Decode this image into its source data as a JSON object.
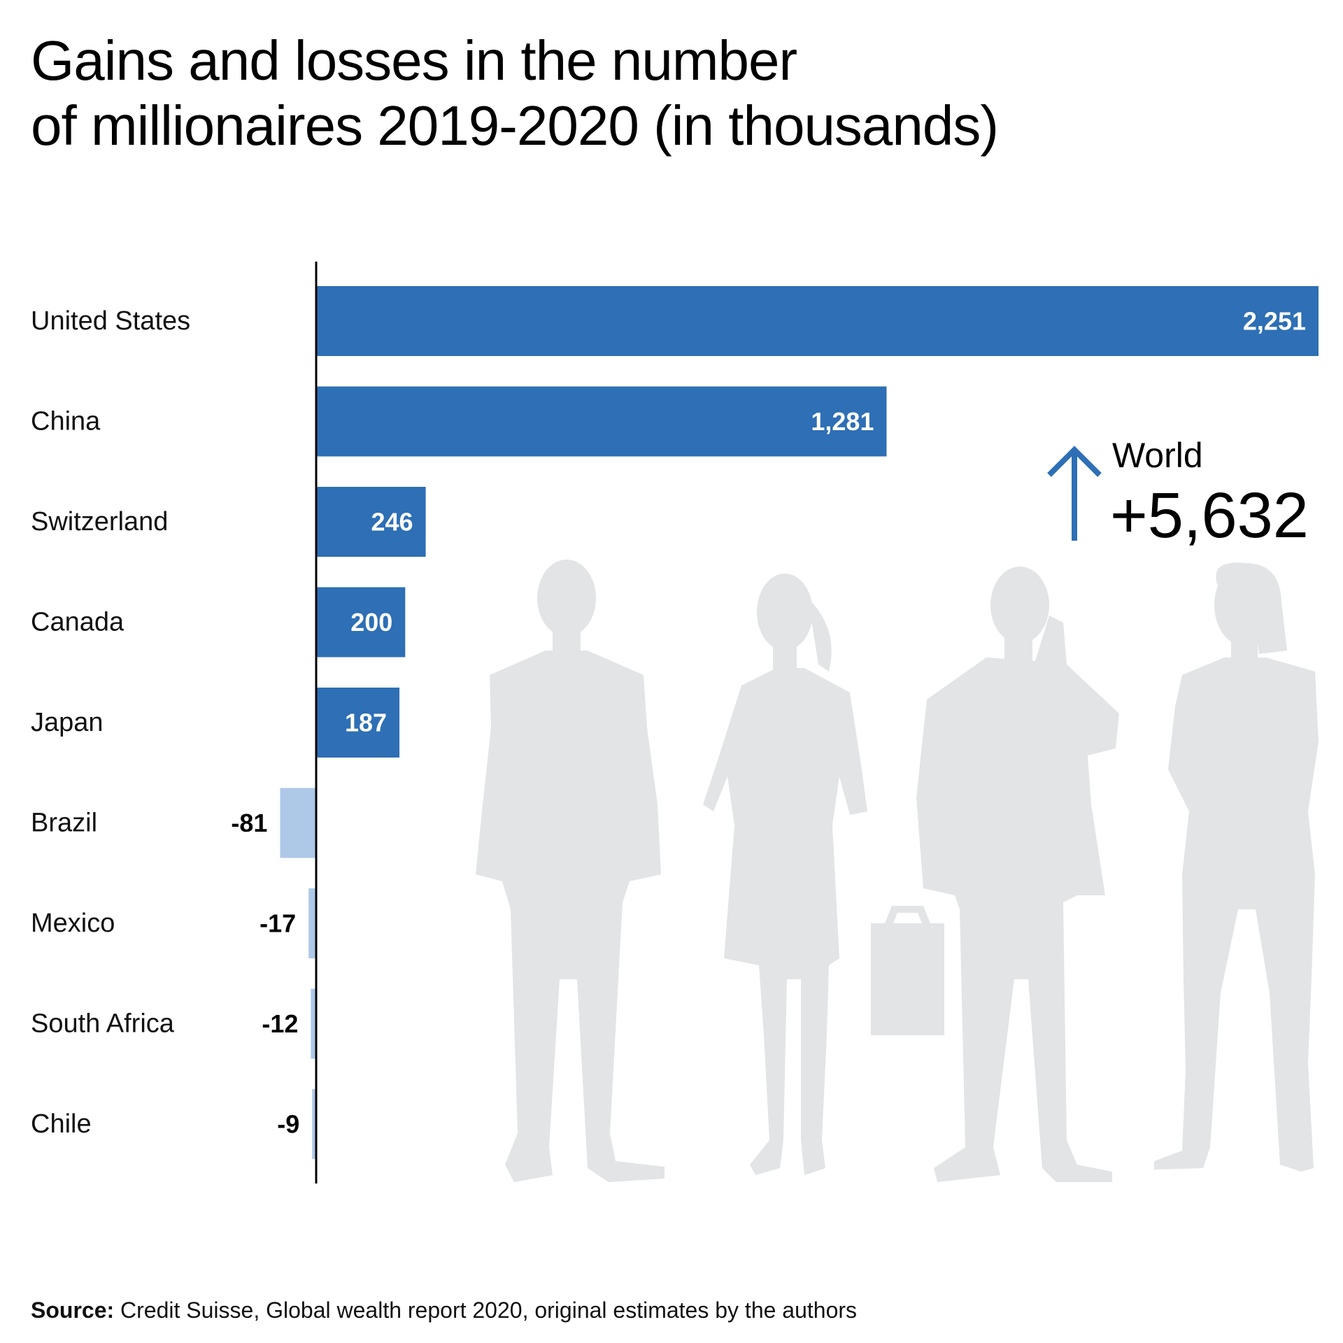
{
  "colors": {
    "positive": "#2e6fb5",
    "negative": "#aec8e8",
    "silhouette": "#e3e4e6",
    "axis": "#000000",
    "arrow": "#2e6fb5"
  },
  "chart_data": {
    "type": "bar",
    "orientation": "horizontal",
    "title": "Gains and losses in the number of millionaires 2019-2020 (in thousands)",
    "title_lines": [
      "Gains and losses in the number",
      "of millionaires 2019-2020 (in thousands)"
    ],
    "categories": [
      "United States",
      "China",
      "Switzerland",
      "Canada",
      "Japan",
      "Brazil",
      "Mexico",
      "South Africa",
      "Chile"
    ],
    "values": [
      2251,
      1281,
      246,
      200,
      187,
      -81,
      -17,
      -12,
      -9
    ],
    "value_labels": [
      "2,251",
      "1,281",
      "246",
      "200",
      "187",
      "-81",
      "-17",
      "-12",
      "-9"
    ],
    "xlim": [
      -200,
      2251
    ],
    "grid": false,
    "legend": "none",
    "annotation": {
      "label": "World",
      "value": "+5,632",
      "icon": "up-arrow-icon"
    }
  },
  "source": {
    "prefix": "Source:",
    "text": " Credit Suisse, Global wealth report 2020, original estimates by the authors"
  },
  "decoration": {
    "icon": "businesspeople-silhouettes"
  }
}
